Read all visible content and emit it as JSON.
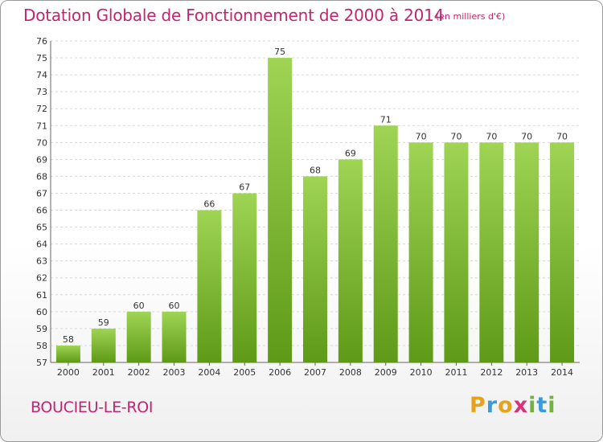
{
  "header": {
    "title": "Dotation Globale de Fonctionnement de 2000 à 2014",
    "subtitle": "(en milliers d'€)"
  },
  "footer": {
    "commune": "BOUCIEU-LE-ROI",
    "logo": {
      "letters": [
        "P",
        "r",
        "o",
        "x",
        "i",
        "t",
        "i"
      ],
      "colors": [
        "#e8a21a",
        "#3a9bd8",
        "#e8a21a",
        "#d6337a",
        "#6fb33c",
        "#3a9bd8",
        "#6fb33c"
      ]
    }
  },
  "colors": {
    "title": "#c0266f",
    "bar_light": "#9fd454",
    "bar_dark": "#5e9a17",
    "grid": "#d8d8d8"
  },
  "chart_data": {
    "type": "bar",
    "title": "Dotation Globale de Fonctionnement de 2000 à 2014",
    "subtitle": "(en milliers d'€)",
    "categories": [
      "2000",
      "2001",
      "2002",
      "2003",
      "2004",
      "2005",
      "2006",
      "2007",
      "2008",
      "2009",
      "2010",
      "2011",
      "2012",
      "2013",
      "2014"
    ],
    "values": [
      58,
      59,
      60,
      60,
      66,
      67,
      75,
      68,
      69,
      71,
      70,
      70,
      70,
      70,
      70
    ],
    "ylim": [
      57,
      76
    ],
    "yticks": [
      57,
      58,
      59,
      60,
      61,
      62,
      63,
      64,
      65,
      66,
      67,
      68,
      69,
      70,
      71,
      72,
      73,
      74,
      75,
      76
    ],
    "grid": true,
    "data_labels": true
  }
}
